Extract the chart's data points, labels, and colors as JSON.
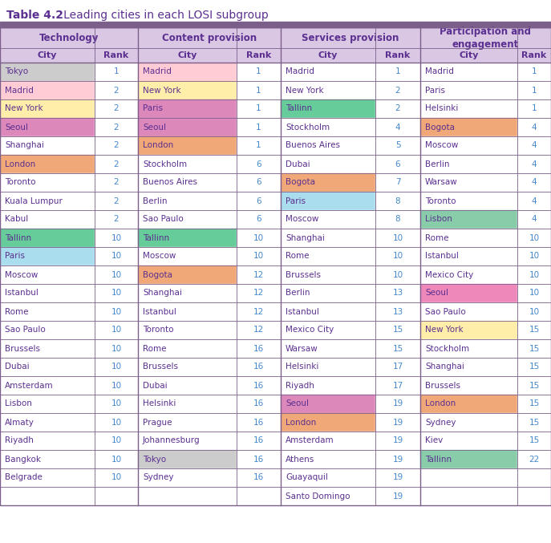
{
  "title_prefix": "Table 4.2",
  "title_suffix": "   Leading cities in each LOSI subgroup",
  "header_bar_color": "#7B5E8A",
  "header_bg_color": "#D9C7E3",
  "col_groups": [
    "Technology",
    "Content provision",
    "Services provision",
    "Participation and\nengagement"
  ],
  "col_headers": [
    "City",
    "Rank",
    "City",
    "Rank",
    "City",
    "Rank",
    "City",
    "Rank"
  ],
  "rows": [
    [
      "Tokyo",
      "1",
      "Madrid",
      "1",
      "Madrid",
      "1",
      "Madrid",
      "1"
    ],
    [
      "Madrid",
      "2",
      "New York",
      "1",
      "New York",
      "2",
      "Paris",
      "1"
    ],
    [
      "New York",
      "2",
      "Paris",
      "1",
      "Tallinn",
      "2",
      "Helsinki",
      "1"
    ],
    [
      "Seoul",
      "2",
      "Seoul",
      "1",
      "Stockholm",
      "4",
      "Bogota",
      "4"
    ],
    [
      "Shanghai",
      "2",
      "London",
      "1",
      "Buenos Aires",
      "5",
      "Moscow",
      "4"
    ],
    [
      "London",
      "2",
      "Stockholm",
      "6",
      "Dubai",
      "6",
      "Berlin",
      "4"
    ],
    [
      "Toronto",
      "2",
      "Buenos Aires",
      "6",
      "Bogota",
      "7",
      "Warsaw",
      "4"
    ],
    [
      "Kuala Lumpur",
      "2",
      "Berlin",
      "6",
      "Paris",
      "8",
      "Toronto",
      "4"
    ],
    [
      "Kabul",
      "2",
      "Sao Paulo",
      "6",
      "Moscow",
      "8",
      "Lisbon",
      "4"
    ],
    [
      "Tallinn",
      "10",
      "Tallinn",
      "10",
      "Shanghai",
      "10",
      "Rome",
      "10"
    ],
    [
      "Paris",
      "10",
      "Moscow",
      "10",
      "Rome",
      "10",
      "Istanbul",
      "10"
    ],
    [
      "Moscow",
      "10",
      "Bogota",
      "12",
      "Brussels",
      "10",
      "Mexico City",
      "10"
    ],
    [
      "Istanbul",
      "10",
      "Shanghai",
      "12",
      "Berlin",
      "13",
      "Seoul",
      "10"
    ],
    [
      "Rome",
      "10",
      "Istanbul",
      "12",
      "Istanbul",
      "13",
      "Sao Paulo",
      "10"
    ],
    [
      "Sao Paulo",
      "10",
      "Toronto",
      "12",
      "Mexico City",
      "15",
      "New York",
      "15"
    ],
    [
      "Brussels",
      "10",
      "Rome",
      "16",
      "Warsaw",
      "15",
      "Stockholm",
      "15"
    ],
    [
      "Dubai",
      "10",
      "Brussels",
      "16",
      "Helsinki",
      "17",
      "Shanghai",
      "15"
    ],
    [
      "Amsterdam",
      "10",
      "Dubai",
      "16",
      "Riyadh",
      "17",
      "Brussels",
      "15"
    ],
    [
      "Lisbon",
      "10",
      "Helsinki",
      "16",
      "Seoul",
      "19",
      "London",
      "15"
    ],
    [
      "Almaty",
      "10",
      "Prague",
      "16",
      "London",
      "19",
      "Sydney",
      "15"
    ],
    [
      "Riyadh",
      "10",
      "Johannesburg",
      "16",
      "Amsterdam",
      "19",
      "Kiev",
      "15"
    ],
    [
      "Bangkok",
      "10",
      "Tokyo",
      "16",
      "Athens",
      "19",
      "Tallinn",
      "22"
    ],
    [
      "Belgrade",
      "10",
      "Sydney",
      "16",
      "Guayaquil",
      "19",
      "",
      ""
    ],
    [
      "",
      "",
      "",
      "",
      "Santo Domingo",
      "19",
      "",
      ""
    ]
  ],
  "cell_colors": {
    "0,0": "#CCCCCC",
    "1,0": "#FFCCD5",
    "2,0": "#FFEEAA",
    "3,0": "#DD88BB",
    "5,0": "#F0A878",
    "9,0": "#66CC99",
    "10,0": "#AADDED",
    "0,2": "#FFCCD5",
    "1,2": "#FFEEAA",
    "2,2": "#DD88BB",
    "3,2": "#DD88BB",
    "4,2": "#F0A878",
    "9,2": "#66CC99",
    "11,2": "#F0A878",
    "21,2": "#CCCCCC",
    "2,4": "#66CC99",
    "6,4": "#F0A878",
    "7,4": "#AADDED",
    "18,4": "#DD88BB",
    "19,4": "#F0A878",
    "3,6": "#F0A878",
    "8,6": "#88CCAA",
    "12,6": "#EE88BB",
    "14,6": "#FFEEAA",
    "18,6": "#F0A878",
    "21,6": "#88CCAA"
  },
  "border_color": "#7B5E8A",
  "text_color": "#5B3090",
  "rank_color": "#4488CC",
  "title_color": "#4488CC",
  "figw": 6.87,
  "figh": 6.77,
  "dpi": 100
}
